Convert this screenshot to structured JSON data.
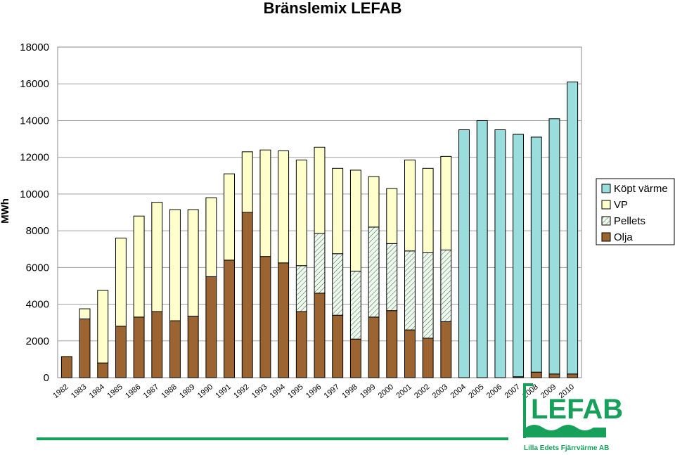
{
  "chart_data": {
    "type": "bar",
    "stacked": true,
    "title": "Bränslemix LEFAB",
    "xlabel": "",
    "ylabel": "MWh",
    "ylim": [
      0,
      18000
    ],
    "yticks": [
      0,
      2000,
      4000,
      6000,
      8000,
      10000,
      12000,
      14000,
      16000,
      18000
    ],
    "grid": true,
    "legend_position": "right",
    "categories": [
      "1982",
      "1983",
      "1984",
      "1985",
      "1986",
      "1987",
      "1988",
      "1989",
      "1990",
      "1991",
      "1992",
      "1993",
      "1994",
      "1995",
      "1996",
      "1997",
      "1998",
      "1999",
      "2000",
      "2001",
      "2002",
      "2003",
      "2004",
      "2005",
      "2006",
      "2007",
      "2008",
      "2009",
      "2010"
    ],
    "series": [
      {
        "name": "Olja",
        "color": "#9b6430",
        "pattern": "solid",
        "values": [
          1150,
          3200,
          800,
          2800,
          3300,
          3600,
          3100,
          3350,
          5500,
          6400,
          9000,
          6600,
          6250,
          3600,
          4600,
          3400,
          2100,
          3300,
          3650,
          2600,
          2150,
          3050,
          0,
          0,
          0,
          50,
          300,
          200,
          200
        ]
      },
      {
        "name": "Pellets",
        "color": "#e8f7e8",
        "pattern": "hatch",
        "values": [
          0,
          0,
          0,
          0,
          0,
          0,
          0,
          0,
          0,
          0,
          0,
          0,
          0,
          2500,
          3250,
          3350,
          3700,
          4900,
          3650,
          4300,
          4650,
          3900,
          0,
          0,
          0,
          0,
          0,
          0,
          0
        ]
      },
      {
        "name": "VP",
        "color": "#ffffcc",
        "pattern": "solid",
        "values": [
          0,
          550,
          3950,
          4800,
          5500,
          5950,
          6050,
          5800,
          4300,
          4700,
          3300,
          5800,
          6100,
          5750,
          4700,
          4650,
          5500,
          2750,
          3000,
          4950,
          4600,
          5100,
          0,
          0,
          0,
          0,
          0,
          0,
          0
        ]
      },
      {
        "name": "Köpt värme",
        "color": "#99dddd",
        "pattern": "solid",
        "values": [
          0,
          0,
          0,
          0,
          0,
          0,
          0,
          0,
          0,
          0,
          0,
          0,
          0,
          0,
          0,
          0,
          0,
          0,
          0,
          0,
          0,
          0,
          13500,
          14000,
          13500,
          13200,
          12800,
          13900,
          15900
        ]
      }
    ]
  },
  "logo": {
    "name": "LEFAB",
    "subtitle": "Lilla Edets Fjärrvärme AB",
    "color": "#16a05a"
  }
}
